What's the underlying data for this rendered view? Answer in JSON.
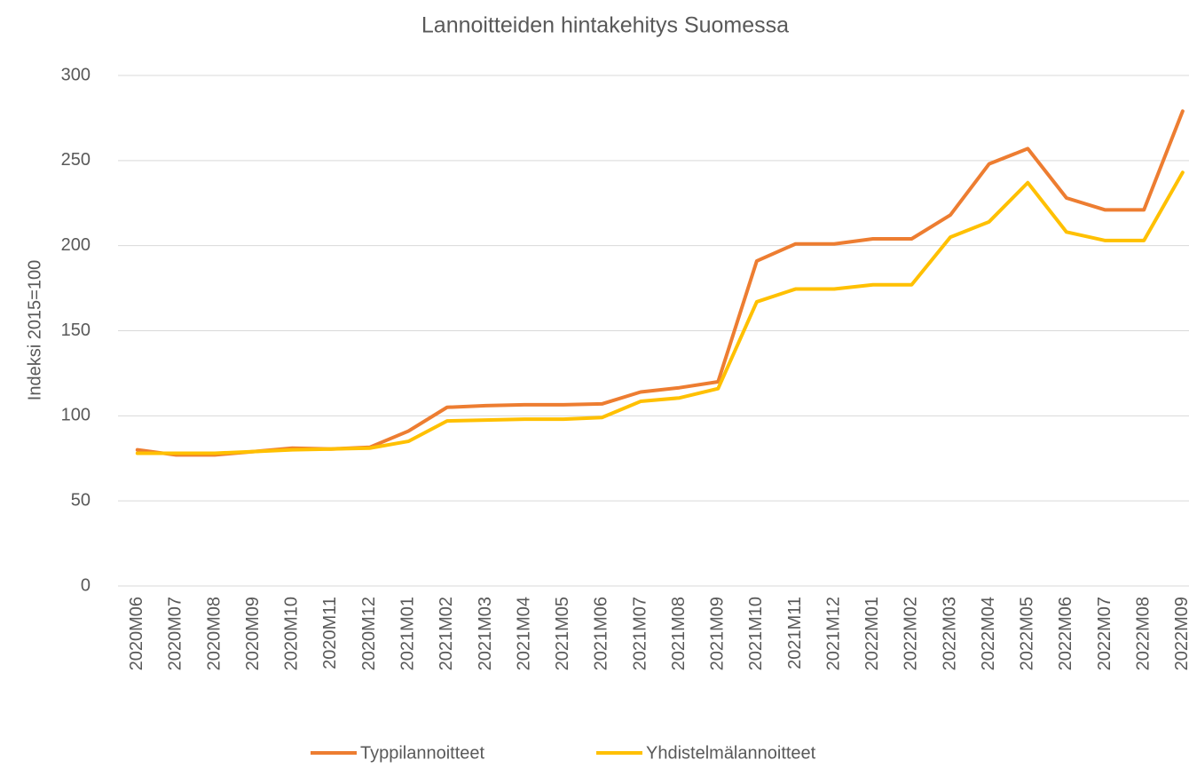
{
  "chart_data": {
    "type": "line",
    "title": "Lannoitteiden hintakehitys Suomessa",
    "y_label": "Indeksi 2015=100",
    "categories": [
      "2020M06",
      "2020M07",
      "2020M08",
      "2020M09",
      "2020M10",
      "2020M11",
      "2020M12",
      "2021M01",
      "2021M02",
      "2021M03",
      "2021M04",
      "2021M05",
      "2021M06",
      "2021M07",
      "2021M08",
      "2021M09",
      "2021M10",
      "2021M11",
      "2021M12",
      "2022M01",
      "2022M02",
      "2022M03",
      "2022M04",
      "2022M05",
      "2022M06",
      "2022M07",
      "2022M08",
      "2022M09"
    ],
    "series": [
      {
        "name": "Typpilannoitteet",
        "color": "#ed7d31",
        "values": [
          80,
          77,
          77,
          79,
          81,
          80.5,
          81.5,
          91,
          105,
          106,
          106.5,
          106.5,
          107,
          114,
          116.5,
          120,
          191,
          201,
          201,
          204,
          204,
          218,
          248,
          257,
          228,
          221,
          221,
          279
        ]
      },
      {
        "name": "Yhdistelmälannoitteet",
        "color": "#ffc000",
        "values": [
          78,
          78,
          78,
          79,
          80,
          80.5,
          81,
          85,
          97,
          97.5,
          98,
          98,
          99,
          108.5,
          110.5,
          116,
          167,
          174.5,
          174.5,
          177,
          177,
          205,
          214,
          237,
          208,
          203,
          203,
          243
        ]
      }
    ],
    "ylim": [
      0,
      300
    ],
    "yticks": [
      0,
      50,
      100,
      150,
      200,
      250,
      300
    ],
    "grid": true,
    "legend": "bottom"
  }
}
